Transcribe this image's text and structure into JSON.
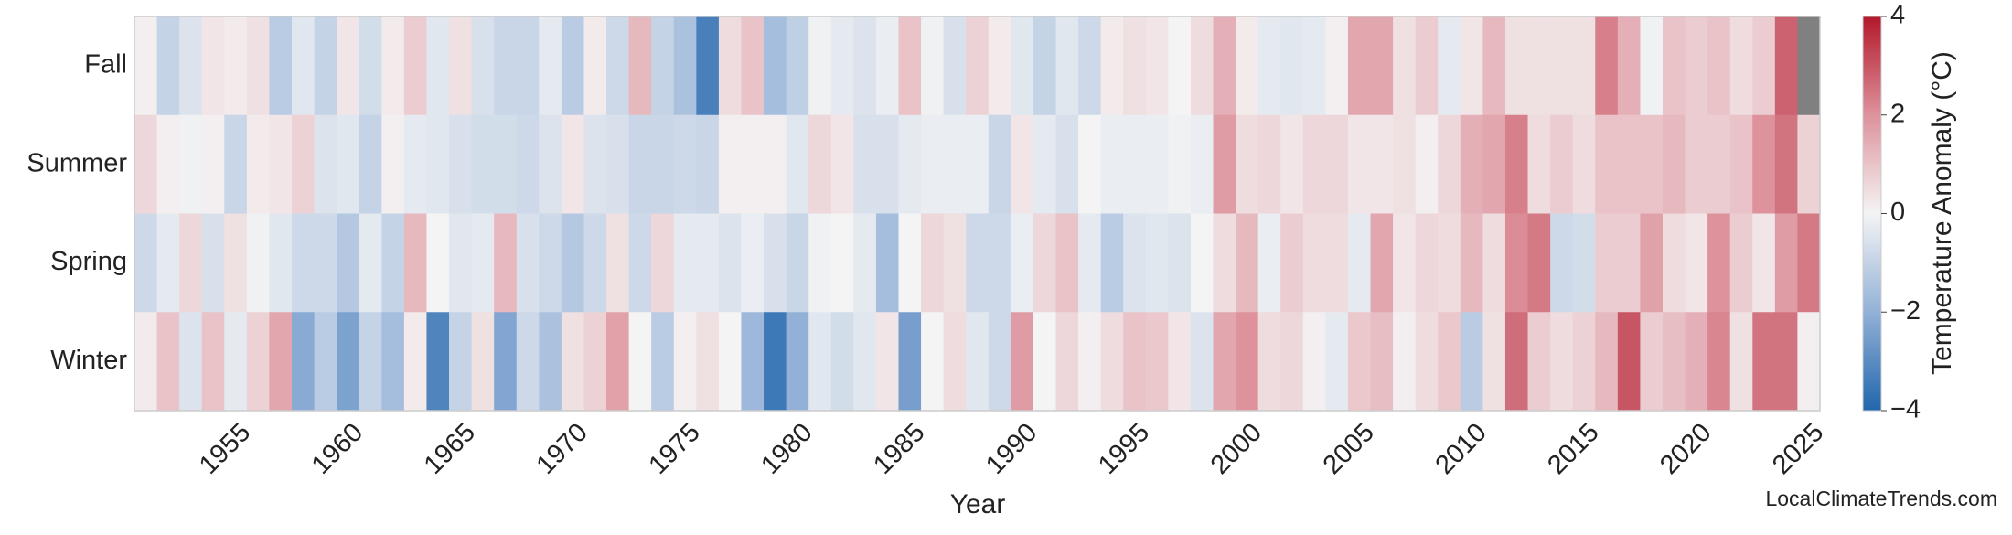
{
  "chart_data": {
    "type": "heatmap",
    "xlabel": "Year",
    "watermark": "LocalClimateTrends.com",
    "x": [
      1950,
      1951,
      1952,
      1953,
      1954,
      1955,
      1956,
      1957,
      1958,
      1959,
      1960,
      1961,
      1962,
      1963,
      1964,
      1965,
      1966,
      1967,
      1968,
      1969,
      1970,
      1971,
      1972,
      1973,
      1974,
      1975,
      1976,
      1977,
      1978,
      1979,
      1980,
      1981,
      1982,
      1983,
      1984,
      1985,
      1986,
      1987,
      1988,
      1989,
      1990,
      1991,
      1992,
      1993,
      1994,
      1995,
      1996,
      1997,
      1998,
      1999,
      2000,
      2001,
      2002,
      2003,
      2004,
      2005,
      2006,
      2007,
      2008,
      2009,
      2010,
      2011,
      2012,
      2013,
      2014,
      2015,
      2016,
      2017,
      2018,
      2019,
      2020,
      2021,
      2022,
      2023,
      2024
    ],
    "xlim": [
      1950,
      2025
    ],
    "xticks": [
      1955,
      1960,
      1965,
      1970,
      1975,
      1980,
      1985,
      1990,
      1995,
      2000,
      2005,
      2010,
      2015,
      2020,
      2025
    ],
    "series": [
      {
        "name": "Fall",
        "values": [
          0.1,
          -1.0,
          -0.5,
          0.3,
          0.2,
          0.4,
          -1.2,
          -0.4,
          -1.0,
          0.3,
          -0.7,
          0.2,
          0.8,
          -0.4,
          0.4,
          -0.6,
          -0.9,
          -0.9,
          -0.3,
          -1.2,
          0.2,
          -0.8,
          1.2,
          -1.0,
          -1.5,
          -3.3,
          0.5,
          1.0,
          -1.6,
          -1.1,
          -0.1,
          -0.3,
          -0.5,
          -0.2,
          1.0,
          -0.1,
          -0.6,
          0.7,
          0.2,
          -0.4,
          -1.0,
          -0.4,
          -0.8,
          0.2,
          0.4,
          0.3,
          0.0,
          0.5,
          1.4,
          0.2,
          -0.3,
          -0.4,
          -0.3,
          0.1,
          1.6,
          1.6,
          0.4,
          0.8,
          -0.3,
          0.3,
          1.2,
          0.4,
          0.4,
          0.4,
          0.4,
          2.3,
          1.4,
          -0.1,
          1.0,
          0.8,
          1.0,
          0.5,
          0.8,
          2.8,
          null
        ]
      },
      {
        "name": "Summer",
        "values": [
          0.6,
          0.1,
          -0.1,
          0.1,
          -0.9,
          0.2,
          0.3,
          0.7,
          -0.5,
          -0.4,
          -1.0,
          0.1,
          -0.3,
          -0.4,
          -0.6,
          -0.7,
          -0.7,
          -0.8,
          -0.5,
          0.3,
          -0.5,
          -0.6,
          -0.9,
          -0.9,
          -0.8,
          -0.9,
          0.1,
          0.1,
          0.1,
          -0.4,
          0.6,
          0.3,
          -0.6,
          -0.6,
          -0.3,
          -0.2,
          -0.2,
          -0.2,
          -0.9,
          0.3,
          -0.3,
          -0.6,
          0.0,
          -0.2,
          -0.2,
          -0.2,
          -0.1,
          -0.2,
          1.8,
          0.5,
          0.6,
          0.3,
          0.6,
          0.6,
          0.3,
          0.3,
          0.4,
          0.1,
          0.6,
          1.4,
          1.6,
          2.3,
          0.5,
          0.8,
          0.5,
          1.0,
          1.0,
          1.0,
          1.2,
          0.8,
          0.8,
          1.0,
          2.0,
          2.5,
          0.7
        ]
      },
      {
        "name": "Spring",
        "values": [
          -0.8,
          -0.3,
          0.6,
          -0.6,
          0.4,
          -0.1,
          -0.4,
          -0.8,
          -0.8,
          -1.3,
          -0.3,
          -1.0,
          1.2,
          0.0,
          -0.4,
          -0.3,
          1.2,
          -0.6,
          -0.8,
          -1.3,
          -0.8,
          0.4,
          -0.8,
          0.6,
          -0.3,
          -0.3,
          -0.5,
          -0.2,
          -0.6,
          -0.9,
          -0.1,
          0.0,
          -0.3,
          -1.6,
          0.0,
          0.6,
          0.4,
          -0.8,
          -0.8,
          -0.2,
          0.6,
          1.0,
          -0.3,
          -1.2,
          -0.5,
          -0.4,
          -0.5,
          0.0,
          0.5,
          1.2,
          -0.2,
          0.8,
          0.5,
          0.5,
          -0.3,
          1.6,
          0.3,
          0.6,
          0.5,
          1.2,
          0.5,
          2.1,
          2.4,
          -0.8,
          -0.7,
          0.8,
          0.8,
          1.7,
          0.5,
          0.3,
          2.0,
          0.8,
          0.3,
          1.8,
          2.4
        ]
      },
      {
        "name": "Winter",
        "values": [
          0.2,
          1.0,
          -0.5,
          1.0,
          -0.3,
          0.7,
          1.6,
          -2.2,
          -1.2,
          -2.4,
          -1.0,
          -1.6,
          0.2,
          -3.2,
          -1.0,
          0.4,
          -2.3,
          -0.8,
          -1.5,
          0.4,
          0.7,
          1.7,
          0.0,
          -1.2,
          0.1,
          0.4,
          0.0,
          -1.8,
          -3.5,
          -2.0,
          -0.4,
          -0.7,
          -0.4,
          0.3,
          -2.5,
          0.0,
          0.5,
          -0.4,
          -0.8,
          1.8,
          0.0,
          0.6,
          0.1,
          0.5,
          1.0,
          0.9,
          0.3,
          -0.5,
          1.6,
          2.0,
          0.5,
          0.6,
          0.1,
          -0.3,
          0.9,
          1.1,
          0.1,
          0.5,
          0.9,
          -1.2,
          0.4,
          2.6,
          0.8,
          0.5,
          0.7,
          1.2,
          3.0,
          0.8,
          1.1,
          1.4,
          2.2,
          0.4,
          2.5,
          2.5,
          0.1
        ]
      }
    ],
    "missing_color": "#808080",
    "colorbar": {
      "label": "Temperature Anomaly (°C)",
      "lim": [
        -4,
        4
      ],
      "ticks": [
        {
          "value": -4,
          "label": "−4"
        },
        {
          "value": -2,
          "label": "−2"
        },
        0,
        2,
        4
      ],
      "colors": [
        "#2166ac",
        "#93b1d7",
        "#f4f4f4",
        "#dd929c",
        "#b2182b"
      ]
    }
  }
}
